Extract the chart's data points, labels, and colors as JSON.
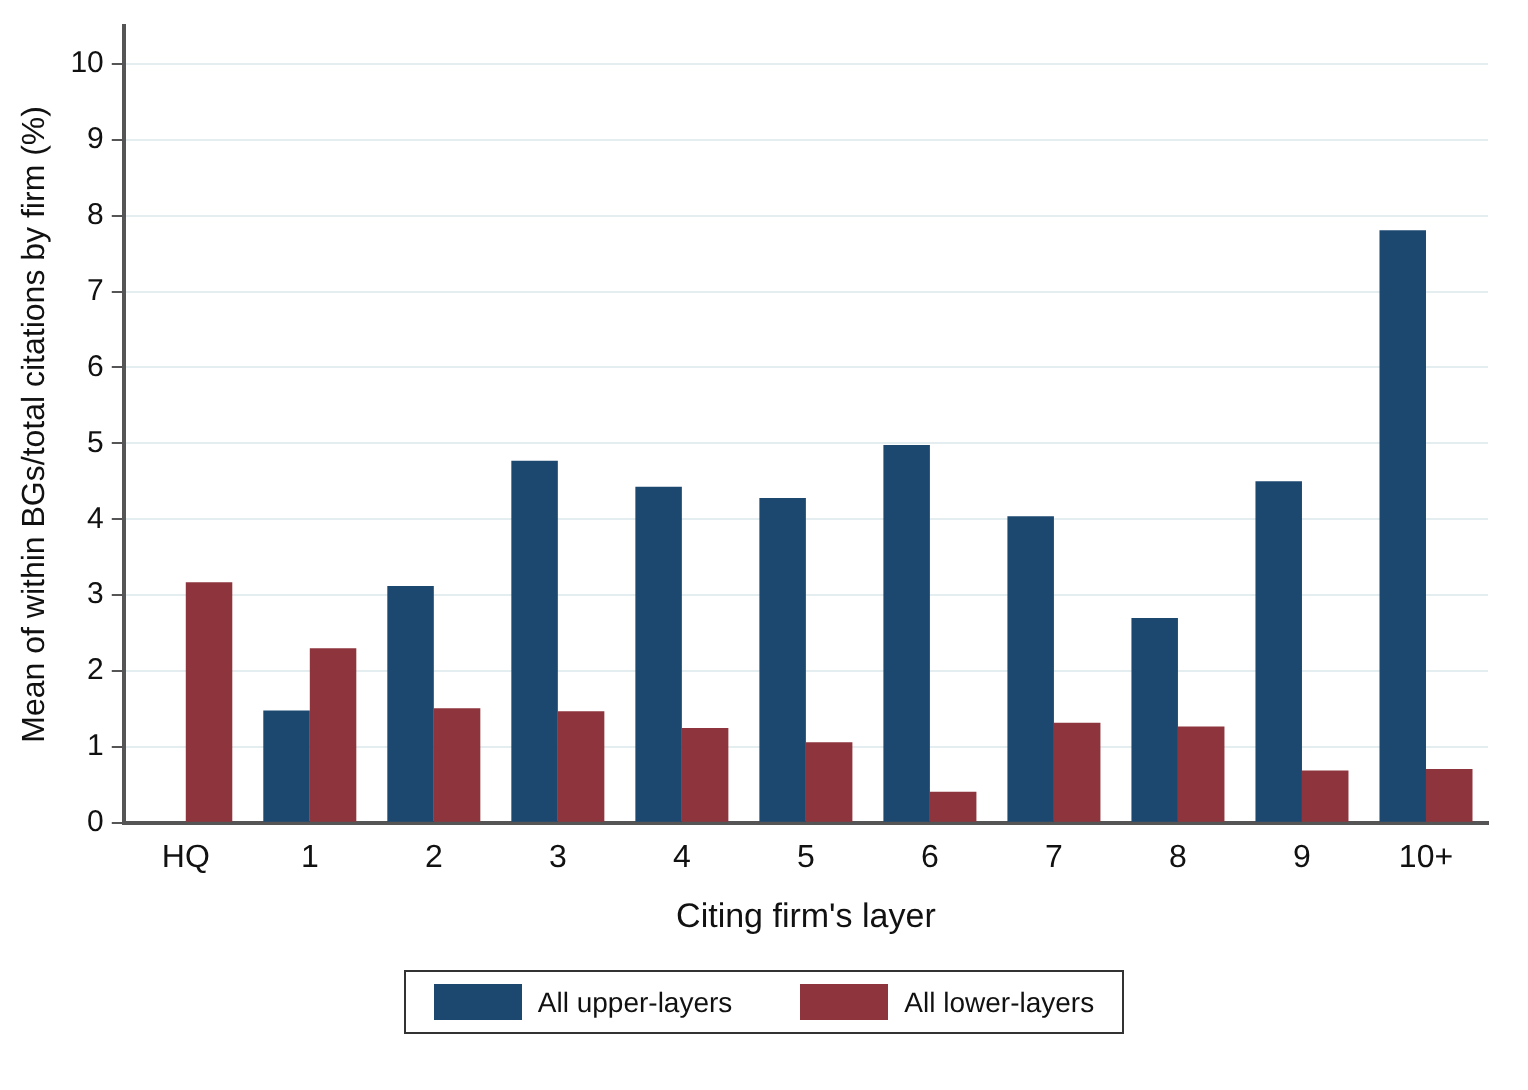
{
  "chart_data": {
    "type": "bar",
    "xlabel": "Citing firm's layer",
    "ylabel": "Mean of within BGs/total citations by firm (%)",
    "categories": [
      "HQ",
      "1",
      "2",
      "3",
      "4",
      "5",
      "6",
      "7",
      "8",
      "9",
      "10+"
    ],
    "series": [
      {
        "name": "All upper-layers",
        "color": "#1c4870",
        "values": [
          null,
          1.48,
          3.12,
          4.77,
          4.43,
          4.28,
          4.98,
          4.04,
          2.7,
          4.5,
          7.81
        ]
      },
      {
        "name": "All lower-layers",
        "color": "#8e343c",
        "values": [
          3.17,
          2.3,
          1.51,
          1.47,
          1.25,
          1.06,
          0.41,
          1.32,
          1.27,
          0.69,
          0.71
        ]
      }
    ],
    "ylim": [
      0,
      10.5
    ],
    "yticks": [
      0,
      1,
      2,
      3,
      4,
      5,
      6,
      7,
      8,
      9,
      10
    ],
    "grid": "y",
    "legend": "bottom"
  }
}
